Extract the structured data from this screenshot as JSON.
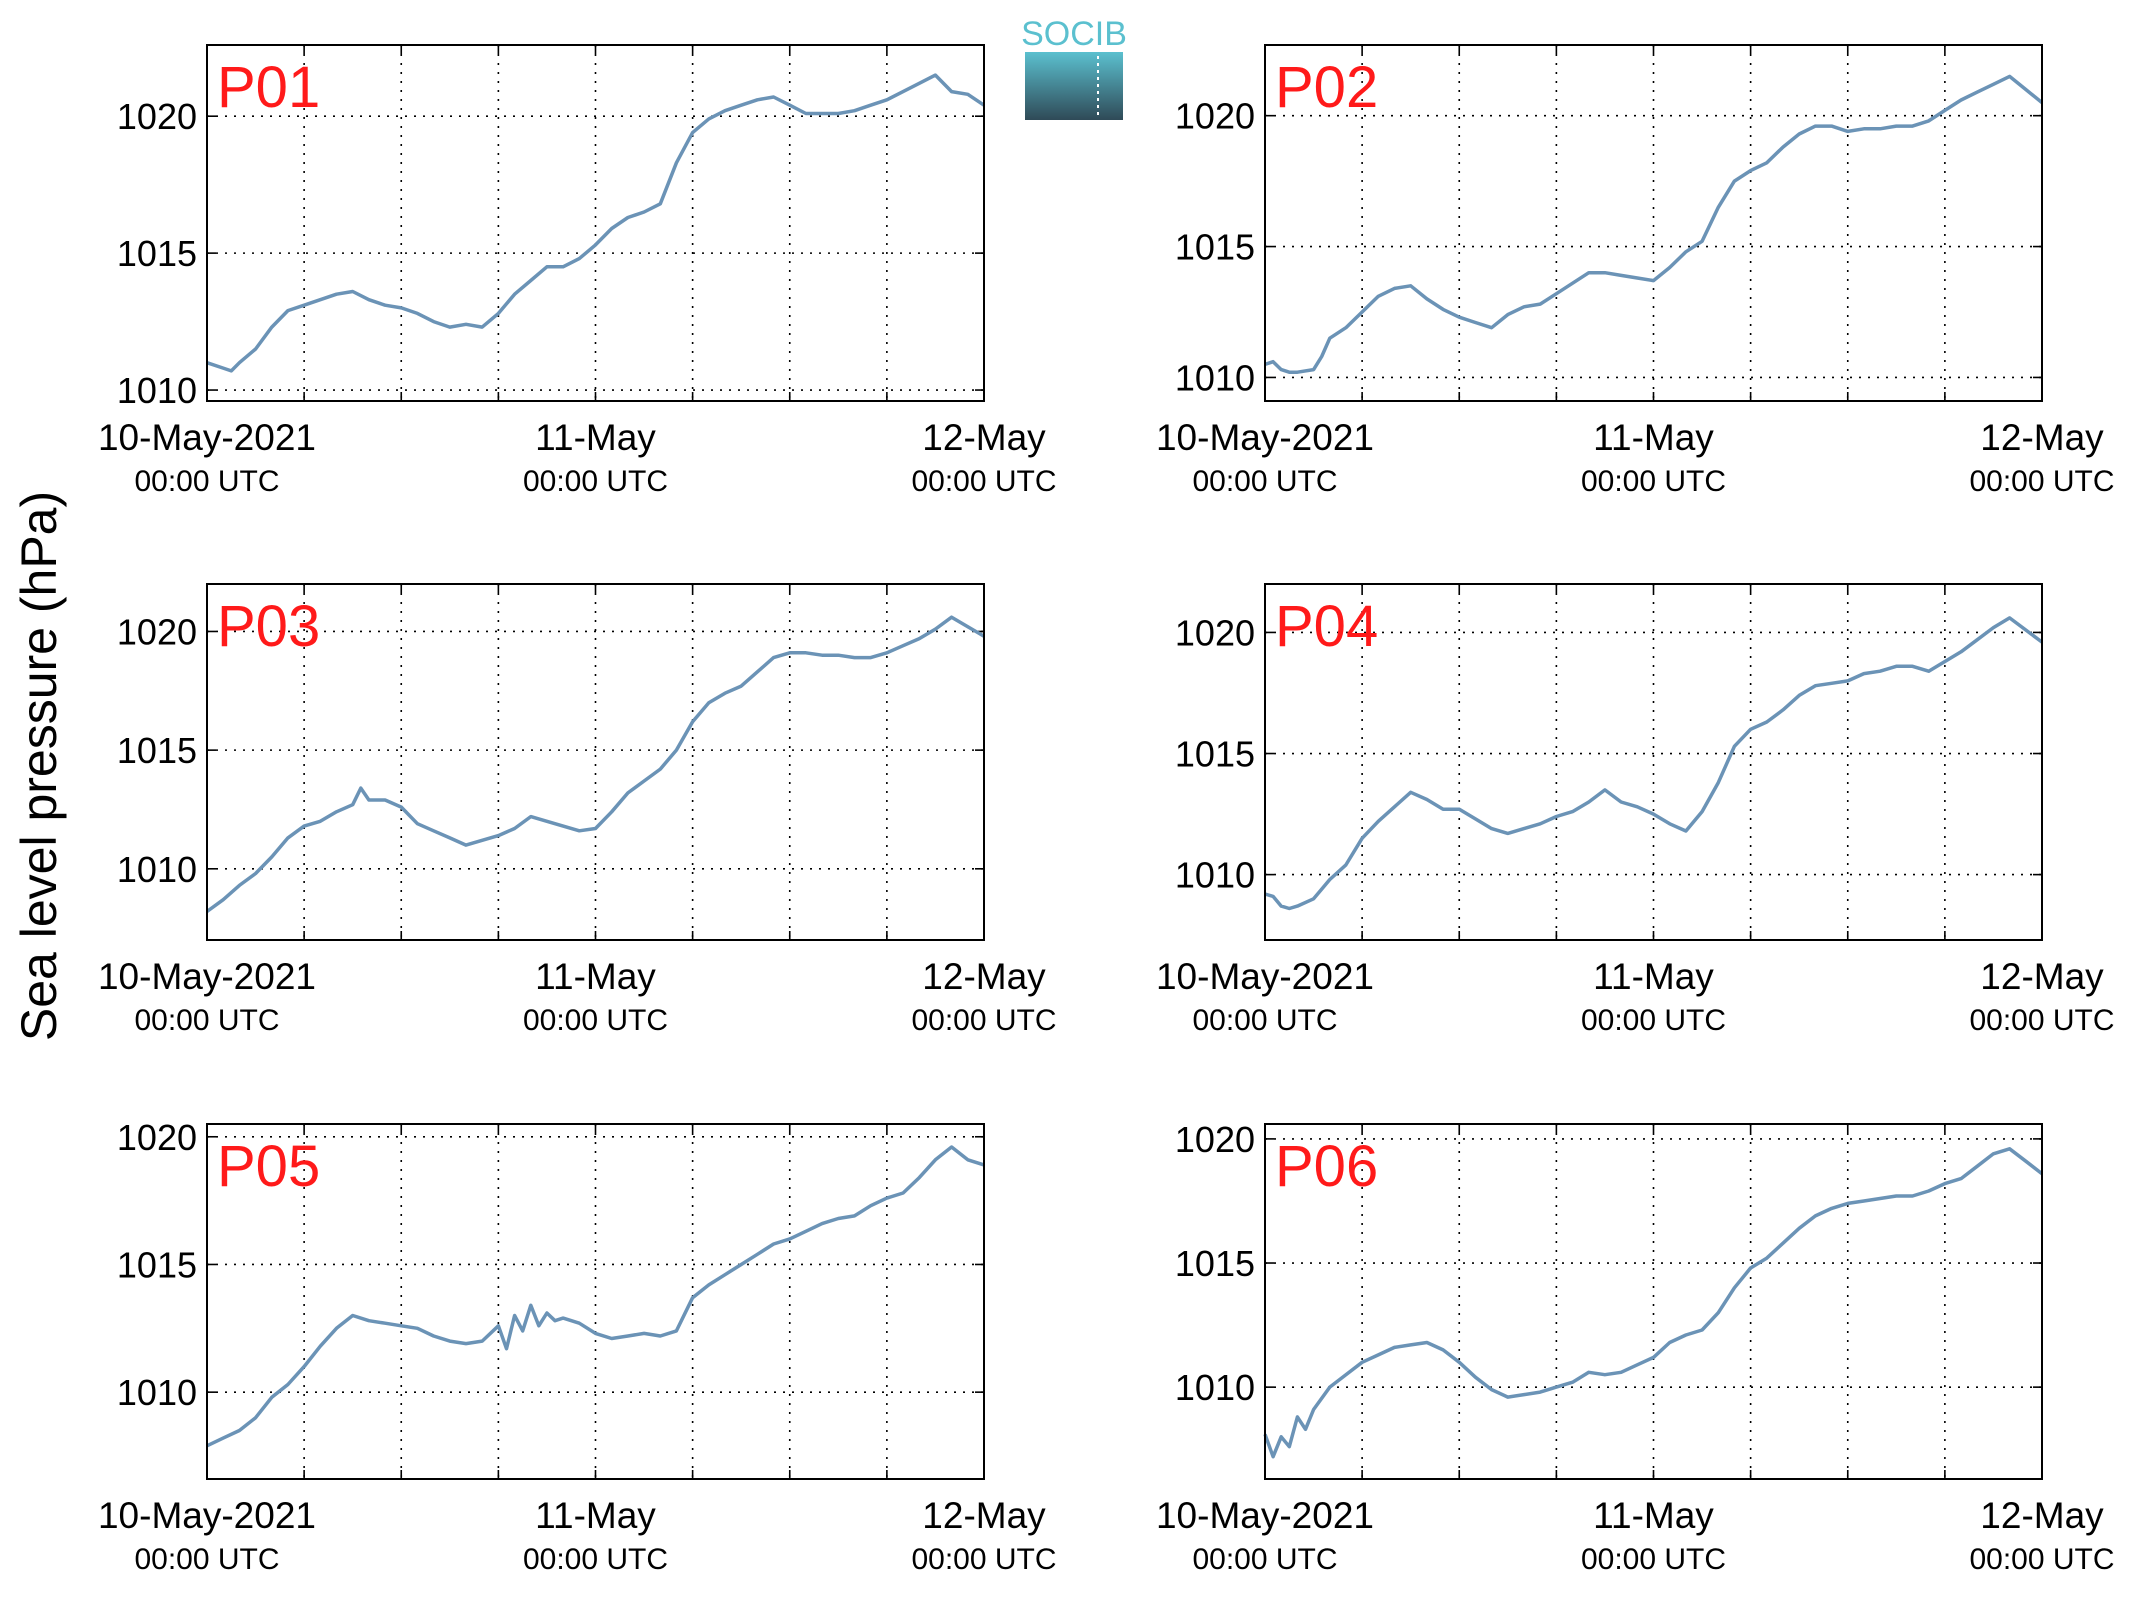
{
  "figure": {
    "ylabel": "Sea level pressure (hPa)",
    "logo_text": "SOCIB",
    "line_color": "#6b93b6",
    "panel_label_color": "#ff1a1a",
    "logo_color_top": "#5bc0cf",
    "logo_color_bottom": "#2f4a57"
  },
  "chart_data": [
    {
      "type": "line",
      "title": "P01",
      "grid": true,
      "x_tick_labels": [
        [
          "10-May-2021",
          "00:00 UTC"
        ],
        [
          "11-May",
          "00:00 UTC"
        ],
        [
          "12-May",
          "00:00 UTC"
        ]
      ],
      "x_ticks_hours": [
        0,
        24,
        48
      ],
      "xlim": [
        0,
        48
      ],
      "yticks": [
        1010,
        1015,
        1020
      ],
      "ylim": [
        1009.6,
        1022.6
      ],
      "series": [
        {
          "x": [
            0,
            1,
            1.5,
            2,
            3,
            4,
            5,
            6,
            7,
            8,
            9,
            10,
            11,
            12,
            13,
            14,
            15,
            16,
            17,
            18,
            19,
            20,
            21,
            22,
            23,
            24,
            25,
            26,
            27,
            28,
            29,
            30,
            31,
            32,
            33,
            34,
            35,
            36,
            37,
            38,
            39,
            40,
            41,
            42,
            43,
            44,
            45,
            46,
            47,
            48
          ],
          "y": [
            1011.0,
            1010.8,
            1010.7,
            1011.0,
            1011.5,
            1012.3,
            1012.9,
            1013.1,
            1013.3,
            1013.5,
            1013.6,
            1013.3,
            1013.1,
            1013.0,
            1012.8,
            1012.5,
            1012.3,
            1012.4,
            1012.3,
            1012.8,
            1013.5,
            1014.0,
            1014.5,
            1014.5,
            1014.8,
            1015.3,
            1015.9,
            1016.3,
            1016.5,
            1016.8,
            1018.3,
            1019.4,
            1019.9,
            1020.2,
            1020.4,
            1020.6,
            1020.7,
            1020.4,
            1020.1,
            1020.1,
            1020.1,
            1020.2,
            1020.4,
            1020.6,
            1020.9,
            1021.2,
            1021.5,
            1020.9,
            1020.8,
            1020.4
          ]
        }
      ]
    },
    {
      "type": "line",
      "title": "P02",
      "grid": true,
      "x_tick_labels": [
        [
          "10-May-2021",
          "00:00 UTC"
        ],
        [
          "11-May",
          "00:00 UTC"
        ],
        [
          "12-May",
          "00:00 UTC"
        ]
      ],
      "x_ticks_hours": [
        0,
        24,
        48
      ],
      "xlim": [
        0,
        48
      ],
      "yticks": [
        1010,
        1015,
        1020
      ],
      "ylim": [
        1009.1,
        1022.7
      ],
      "series": [
        {
          "x": [
            0,
            0.5,
            1,
            1.5,
            2,
            3,
            3.5,
            4,
            5,
            6,
            7,
            8,
            9,
            10,
            11,
            12,
            13,
            14,
            15,
            16,
            17,
            18,
            19,
            20,
            21,
            22,
            23,
            24,
            25,
            26,
            27,
            28,
            29,
            30,
            31,
            32,
            33,
            34,
            35,
            36,
            37,
            38,
            39,
            40,
            41,
            42,
            43,
            44,
            45,
            46,
            47,
            48
          ],
          "y": [
            1010.5,
            1010.6,
            1010.3,
            1010.2,
            1010.2,
            1010.3,
            1010.8,
            1011.5,
            1011.9,
            1012.5,
            1013.1,
            1013.4,
            1013.5,
            1013.0,
            1012.6,
            1012.3,
            1012.1,
            1011.9,
            1012.4,
            1012.7,
            1012.8,
            1013.2,
            1013.6,
            1014.0,
            1014.0,
            1013.9,
            1013.8,
            1013.7,
            1014.2,
            1014.8,
            1015.2,
            1016.5,
            1017.5,
            1017.9,
            1018.2,
            1018.8,
            1019.3,
            1019.6,
            1019.6,
            1019.4,
            1019.5,
            1019.5,
            1019.6,
            1019.6,
            1019.8,
            1020.2,
            1020.6,
            1020.9,
            1021.2,
            1021.5,
            1021.0,
            1020.5
          ]
        }
      ]
    },
    {
      "type": "line",
      "title": "P03",
      "grid": true,
      "x_tick_labels": [
        [
          "10-May-2021",
          "00:00 UTC"
        ],
        [
          "11-May",
          "00:00 UTC"
        ],
        [
          "12-May",
          "00:00 UTC"
        ]
      ],
      "x_ticks_hours": [
        0,
        24,
        48
      ],
      "xlim": [
        0,
        48
      ],
      "yticks": [
        1010,
        1015,
        1020
      ],
      "ylim": [
        1007.0,
        1022.0
      ],
      "series": [
        {
          "x": [
            0,
            1,
            2,
            3,
            4,
            5,
            6,
            7,
            8,
            9,
            9.5,
            10,
            11,
            12,
            13,
            14,
            15,
            16,
            17,
            18,
            19,
            20,
            21,
            22,
            23,
            24,
            25,
            26,
            27,
            28,
            29,
            30,
            31,
            32,
            33,
            34,
            35,
            36,
            37,
            38,
            39,
            40,
            41,
            42,
            43,
            44,
            45,
            46,
            47,
            48
          ],
          "y": [
            1008.2,
            1008.7,
            1009.3,
            1009.8,
            1010.5,
            1011.3,
            1011.8,
            1012.0,
            1012.4,
            1012.7,
            1013.4,
            1012.9,
            1012.9,
            1012.6,
            1011.9,
            1011.6,
            1011.3,
            1011.0,
            1011.2,
            1011.4,
            1011.7,
            1012.2,
            1012.0,
            1011.8,
            1011.6,
            1011.7,
            1012.4,
            1013.2,
            1013.7,
            1014.2,
            1015.0,
            1016.2,
            1017.0,
            1017.4,
            1017.7,
            1018.3,
            1018.9,
            1019.1,
            1019.1,
            1019.0,
            1019.0,
            1018.9,
            1018.9,
            1019.1,
            1019.4,
            1019.7,
            1020.1,
            1020.6,
            1020.2,
            1019.8
          ]
        }
      ]
    },
    {
      "type": "line",
      "title": "P04",
      "grid": true,
      "x_tick_labels": [
        [
          "10-May-2021",
          "00:00 UTC"
        ],
        [
          "11-May",
          "00:00 UTC"
        ],
        [
          "12-May",
          "00:00 UTC"
        ]
      ],
      "x_ticks_hours": [
        0,
        24,
        48
      ],
      "xlim": [
        0,
        48
      ],
      "yticks": [
        1010,
        1015,
        1020
      ],
      "ylim": [
        1007.3,
        1022.0
      ],
      "series": [
        {
          "x": [
            0,
            0.5,
            1,
            1.5,
            2,
            3,
            4,
            5,
            6,
            7,
            8,
            9,
            10,
            11,
            12,
            13,
            14,
            15,
            16,
            17,
            18,
            19,
            20,
            21,
            22,
            23,
            24,
            25,
            26,
            27,
            28,
            29,
            30,
            31,
            32,
            33,
            34,
            35,
            36,
            37,
            38,
            39,
            40,
            41,
            42,
            43,
            44,
            45,
            46,
            47,
            48
          ],
          "y": [
            1009.2,
            1009.1,
            1008.7,
            1008.6,
            1008.7,
            1009.0,
            1009.8,
            1010.4,
            1011.5,
            1012.2,
            1012.8,
            1013.4,
            1013.1,
            1012.7,
            1012.7,
            1012.3,
            1011.9,
            1011.7,
            1011.9,
            1012.1,
            1012.4,
            1012.6,
            1013.0,
            1013.5,
            1013.0,
            1012.8,
            1012.5,
            1012.1,
            1011.8,
            1012.6,
            1013.8,
            1015.3,
            1016.0,
            1016.3,
            1016.8,
            1017.4,
            1017.8,
            1017.9,
            1018.0,
            1018.3,
            1018.4,
            1018.6,
            1018.6,
            1018.4,
            1018.8,
            1019.2,
            1019.7,
            1020.2,
            1020.6,
            1020.1,
            1019.6
          ]
        }
      ]
    },
    {
      "type": "line",
      "title": "P05",
      "grid": true,
      "x_tick_labels": [
        [
          "10-May-2021",
          "00:00 UTC"
        ],
        [
          "11-May",
          "00:00 UTC"
        ],
        [
          "12-May",
          "00:00 UTC"
        ]
      ],
      "x_ticks_hours": [
        0,
        24,
        48
      ],
      "xlim": [
        0,
        48
      ],
      "yticks": [
        1010,
        1015,
        1020
      ],
      "ylim": [
        1006.6,
        1020.5
      ],
      "series": [
        {
          "x": [
            0,
            1,
            2,
            3,
            4,
            5,
            6,
            7,
            8,
            9,
            10,
            11,
            12,
            13,
            14,
            15,
            16,
            17,
            18,
            18.5,
            19,
            19.5,
            20,
            20.5,
            21,
            21.5,
            22,
            23,
            24,
            25,
            26,
            27,
            28,
            29,
            30,
            31,
            32,
            33,
            34,
            35,
            36,
            37,
            38,
            39,
            40,
            41,
            42,
            43,
            44,
            45,
            46,
            47,
            48
          ],
          "y": [
            1007.9,
            1008.2,
            1008.5,
            1009.0,
            1009.8,
            1010.3,
            1011.0,
            1011.8,
            1012.5,
            1013.0,
            1012.8,
            1012.7,
            1012.6,
            1012.5,
            1012.2,
            1012.0,
            1011.9,
            1012.0,
            1012.6,
            1011.7,
            1013.0,
            1012.4,
            1013.4,
            1012.6,
            1013.1,
            1012.8,
            1012.9,
            1012.7,
            1012.3,
            1012.1,
            1012.2,
            1012.3,
            1012.2,
            1012.4,
            1013.7,
            1014.2,
            1014.6,
            1015.0,
            1015.4,
            1015.8,
            1016.0,
            1016.3,
            1016.6,
            1016.8,
            1016.9,
            1017.3,
            1017.6,
            1017.8,
            1018.4,
            1019.1,
            1019.6,
            1019.1,
            1018.9
          ]
        }
      ]
    },
    {
      "type": "line",
      "title": "P06",
      "grid": true,
      "x_tick_labels": [
        [
          "10-May-2021",
          "00:00 UTC"
        ],
        [
          "11-May",
          "00:00 UTC"
        ],
        [
          "12-May",
          "00:00 UTC"
        ]
      ],
      "x_ticks_hours": [
        0,
        24,
        48
      ],
      "xlim": [
        0,
        48
      ],
      "yticks": [
        1010,
        1015,
        1020
      ],
      "ylim": [
        1006.3,
        1020.6
      ],
      "series": [
        {
          "x": [
            0,
            0.5,
            1,
            1.5,
            2,
            2.5,
            3,
            4,
            5,
            6,
            7,
            8,
            9,
            10,
            11,
            12,
            13,
            14,
            15,
            16,
            17,
            18,
            19,
            20,
            21,
            22,
            23,
            24,
            25,
            26,
            27,
            28,
            29,
            30,
            31,
            32,
            33,
            34,
            35,
            36,
            37,
            38,
            39,
            40,
            41,
            42,
            43,
            44,
            45,
            46,
            47,
            48
          ],
          "y": [
            1008.1,
            1007.2,
            1008.0,
            1007.6,
            1008.8,
            1008.3,
            1009.1,
            1010.0,
            1010.5,
            1011.0,
            1011.3,
            1011.6,
            1011.7,
            1011.8,
            1011.5,
            1011.0,
            1010.4,
            1009.9,
            1009.6,
            1009.7,
            1009.8,
            1010.0,
            1010.2,
            1010.6,
            1010.5,
            1010.6,
            1010.9,
            1011.2,
            1011.8,
            1012.1,
            1012.3,
            1013.0,
            1014.0,
            1014.8,
            1015.2,
            1015.8,
            1016.4,
            1016.9,
            1017.2,
            1017.4,
            1017.5,
            1017.6,
            1017.7,
            1017.7,
            1017.9,
            1018.2,
            1018.4,
            1018.9,
            1019.4,
            1019.6,
            1019.1,
            1018.6
          ]
        }
      ]
    }
  ]
}
